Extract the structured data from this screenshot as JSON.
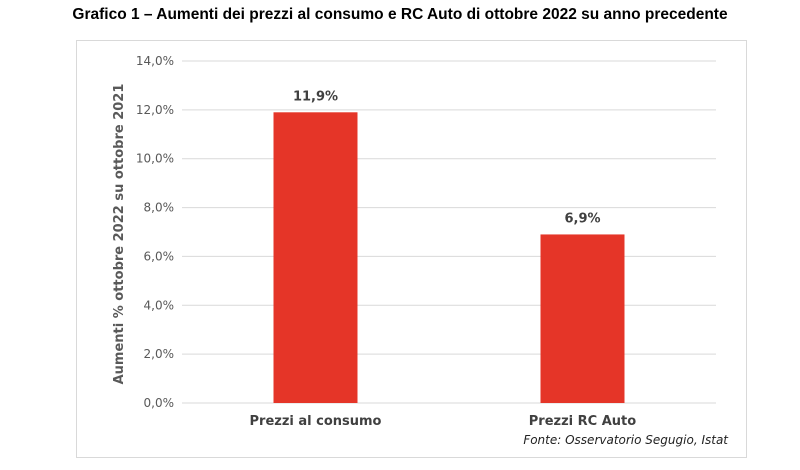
{
  "title": "Grafico 1 – Aumenti dei prezzi al consumo e RC Auto di ottobre 2022 su anno precedente",
  "source": "Fonte: Osservatorio Segugio, Istat",
  "chart_data": {
    "type": "bar",
    "title": "Grafico 1 – Aumenti dei prezzi al consumo e RC Auto di ottobre 2022 su anno precedente",
    "categories": [
      "Prezzi al consumo",
      "Prezzi RC Auto"
    ],
    "values": [
      11.9,
      6.9
    ],
    "data_labels": [
      "11,9%",
      "6,9%"
    ],
    "xlabel": "",
    "ylabel": "Aumenti % ottobre 2022 su ottobre 2021",
    "ylim": [
      0,
      14
    ],
    "yticks": [
      0,
      2,
      4,
      6,
      8,
      10,
      12,
      14
    ],
    "ytick_labels": [
      "0,0%",
      "2,0%",
      "4,0%",
      "6,0%",
      "8,0%",
      "10,0%",
      "12,0%",
      "14,0%"
    ],
    "grid": true,
    "legend": "none",
    "bar_color": "#e53528",
    "grid_color": "#d9d9d9"
  }
}
